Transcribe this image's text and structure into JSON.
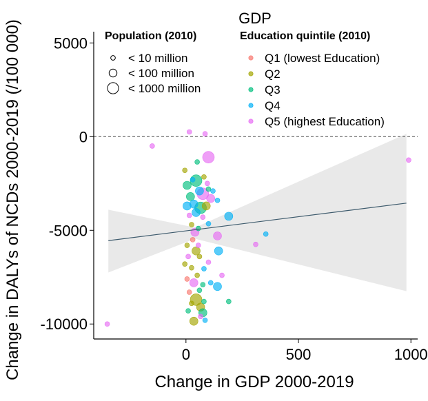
{
  "chart_data": {
    "type": "scatter",
    "title": "GDP",
    "xlabel": "Change in GDP 2000-2019",
    "ylabel": "Change in DALYs of NCDs 2000-2019 (/100 000)",
    "xlim": [
      -410,
      1030
    ],
    "ylim": [
      -10800,
      5600
    ],
    "x_ticks": [
      0,
      500,
      1000
    ],
    "y_ticks": [
      5000,
      0,
      -5000,
      -10000
    ],
    "reference_line_y": 0,
    "grid": false,
    "size_legend": {
      "title": "Population (2010)",
      "entries": [
        "< 10 million",
        "< 100 million",
        "< 1000 million"
      ]
    },
    "color_legend": {
      "title": "Education quintile (2010)",
      "entries": [
        "Q1 (lowest Education)",
        "Q2",
        "Q3",
        "Q4",
        "Q5 (highest Education)"
      ],
      "colors": [
        "#F8766D",
        "#A3A500",
        "#00BF7D",
        "#00B0F6",
        "#E76BF3"
      ]
    },
    "trend": {
      "x0": -345,
      "y0": -5550,
      "x1": 980,
      "y1": -3550,
      "band_lower": [
        [
          -345,
          -7250
        ],
        [
          40,
          -5450
        ],
        [
          980,
          -8250
        ]
      ],
      "band_upper": [
        [
          -345,
          -3900
        ],
        [
          40,
          -4850
        ],
        [
          980,
          150
        ]
      ]
    },
    "points": [
      {
        "x": -350,
        "y": -10000,
        "q": 5,
        "s": 1
      },
      {
        "x": -150,
        "y": -500,
        "q": 5,
        "s": 1
      },
      {
        "x": 15,
        "y": 250,
        "q": 5,
        "s": 1
      },
      {
        "x": 85,
        "y": 150,
        "q": 5,
        "s": 1
      },
      {
        "x": 990,
        "y": -1250,
        "q": 5,
        "s": 1
      },
      {
        "x": 100,
        "y": -1100,
        "q": 5,
        "s": 3
      },
      {
        "x": 50,
        "y": -1350,
        "q": 3,
        "s": 1
      },
      {
        "x": -5,
        "y": -1800,
        "q": 2,
        "s": 1
      },
      {
        "x": 30,
        "y": -2300,
        "q": 4,
        "s": 1
      },
      {
        "x": 5,
        "y": -2600,
        "q": 3,
        "s": 2
      },
      {
        "x": 45,
        "y": -2350,
        "q": 3,
        "s": 3
      },
      {
        "x": 80,
        "y": -2150,
        "q": 2,
        "s": 1
      },
      {
        "x": 95,
        "y": -2500,
        "q": 5,
        "s": 1
      },
      {
        "x": 100,
        "y": -2800,
        "q": 3,
        "s": 1
      },
      {
        "x": 60,
        "y": -2900,
        "q": 4,
        "s": 2
      },
      {
        "x": 120,
        "y": -2900,
        "q": 4,
        "s": 1
      },
      {
        "x": 20,
        "y": -3200,
        "q": 3,
        "s": 2
      },
      {
        "x": 75,
        "y": -3050,
        "q": 5,
        "s": 3
      },
      {
        "x": 110,
        "y": -3300,
        "q": 5,
        "s": 2
      },
      {
        "x": 140,
        "y": -3400,
        "q": 4,
        "s": 1
      },
      {
        "x": 5,
        "y": -3700,
        "q": 4,
        "s": 2
      },
      {
        "x": 35,
        "y": -3600,
        "q": 4,
        "s": 2
      },
      {
        "x": 65,
        "y": -3800,
        "q": 3,
        "s": 3
      },
      {
        "x": 90,
        "y": -3700,
        "q": 2,
        "s": 2
      },
      {
        "x": 15,
        "y": -4200,
        "q": 5,
        "s": 1
      },
      {
        "x": 45,
        "y": -4050,
        "q": 4,
        "s": 2
      },
      {
        "x": 75,
        "y": -4300,
        "q": 5,
        "s": 1
      },
      {
        "x": 190,
        "y": -4250,
        "q": 4,
        "s": 2
      },
      {
        "x": 25,
        "y": -4700,
        "q": 2,
        "s": 1
      },
      {
        "x": 55,
        "y": -4900,
        "q": 3,
        "s": 1
      },
      {
        "x": 100,
        "y": -4650,
        "q": 4,
        "s": 1
      },
      {
        "x": 40,
        "y": -5100,
        "q": 5,
        "s": 2
      },
      {
        "x": 140,
        "y": -5300,
        "q": 5,
        "s": 2
      },
      {
        "x": 355,
        "y": -5200,
        "q": 4,
        "s": 1
      },
      {
        "x": 30,
        "y": -5500,
        "q": 1,
        "s": 1
      },
      {
        "x": 5,
        "y": -5800,
        "q": 2,
        "s": 1
      },
      {
        "x": 55,
        "y": -5800,
        "q": 5,
        "s": 1
      },
      {
        "x": 310,
        "y": -5750,
        "q": 5,
        "s": 1
      },
      {
        "x": 45,
        "y": -6100,
        "q": 2,
        "s": 2
      },
      {
        "x": 145,
        "y": -6100,
        "q": 4,
        "s": 2
      },
      {
        "x": 10,
        "y": -6400,
        "q": 5,
        "s": 1
      },
      {
        "x": 60,
        "y": -6400,
        "q": 2,
        "s": 1
      },
      {
        "x": 100,
        "y": -6700,
        "q": 5,
        "s": 1
      },
      {
        "x": -5,
        "y": -6800,
        "q": 2,
        "s": 1
      },
      {
        "x": 25,
        "y": -7000,
        "q": 2,
        "s": 1
      },
      {
        "x": 80,
        "y": -7050,
        "q": 4,
        "s": 1
      },
      {
        "x": 50,
        "y": -7400,
        "q": 2,
        "s": 1
      },
      {
        "x": 160,
        "y": -7400,
        "q": 5,
        "s": 1
      },
      {
        "x": 5,
        "y": -7600,
        "q": 1,
        "s": 1
      },
      {
        "x": 75,
        "y": -7900,
        "q": 3,
        "s": 1
      },
      {
        "x": 110,
        "y": -7800,
        "q": 4,
        "s": 1
      },
      {
        "x": 35,
        "y": -7800,
        "q": 5,
        "s": 2
      },
      {
        "x": 140,
        "y": -8000,
        "q": 4,
        "s": 2
      },
      {
        "x": 15,
        "y": -8300,
        "q": 1,
        "s": 1
      },
      {
        "x": 60,
        "y": -8200,
        "q": 3,
        "s": 1
      },
      {
        "x": 45,
        "y": -8700,
        "q": 2,
        "s": 3
      },
      {
        "x": 25,
        "y": -8900,
        "q": 2,
        "s": 1
      },
      {
        "x": 80,
        "y": -8800,
        "q": 3,
        "s": 1
      },
      {
        "x": 190,
        "y": -8800,
        "q": 3,
        "s": 1
      },
      {
        "x": 65,
        "y": -9100,
        "q": 2,
        "s": 2
      },
      {
        "x": 10,
        "y": -9300,
        "q": 3,
        "s": 1
      },
      {
        "x": 65,
        "y": -9600,
        "q": 5,
        "s": 1
      },
      {
        "x": 75,
        "y": -9400,
        "q": 3,
        "s": 2
      },
      {
        "x": 35,
        "y": -9850,
        "q": 2,
        "s": 2
      },
      {
        "x": 85,
        "y": -9800,
        "q": 4,
        "s": 1
      }
    ]
  }
}
